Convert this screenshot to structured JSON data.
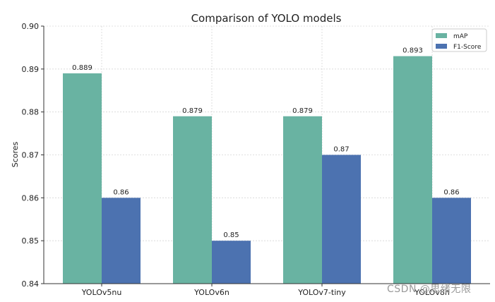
{
  "chart_data": {
    "type": "bar",
    "title": "Comparison of YOLO models",
    "xlabel": "",
    "ylabel": "Scores",
    "ylim": [
      0.84,
      0.9
    ],
    "yticks": [
      "0.84",
      "0.85",
      "0.86",
      "0.87",
      "0.88",
      "0.89",
      "0.90"
    ],
    "grid": true,
    "legend_position": "top-right",
    "categories": [
      "YOLOv5nu",
      "YOLOv6n",
      "YOLOv7-tiny",
      "YOLOv8n"
    ],
    "series": [
      {
        "name": "mAP",
        "color": "#69b3a2",
        "values": [
          0.889,
          0.879,
          0.879,
          0.893
        ],
        "labels": [
          "0.889",
          "0.879",
          "0.879",
          "0.893"
        ]
      },
      {
        "name": "F1-Score",
        "color": "#4c72b0",
        "values": [
          0.86,
          0.85,
          0.87,
          0.86
        ],
        "labels": [
          "0.86",
          "0.85",
          "0.87",
          "0.86"
        ]
      }
    ]
  },
  "watermark": "CSDN @思绪无限"
}
